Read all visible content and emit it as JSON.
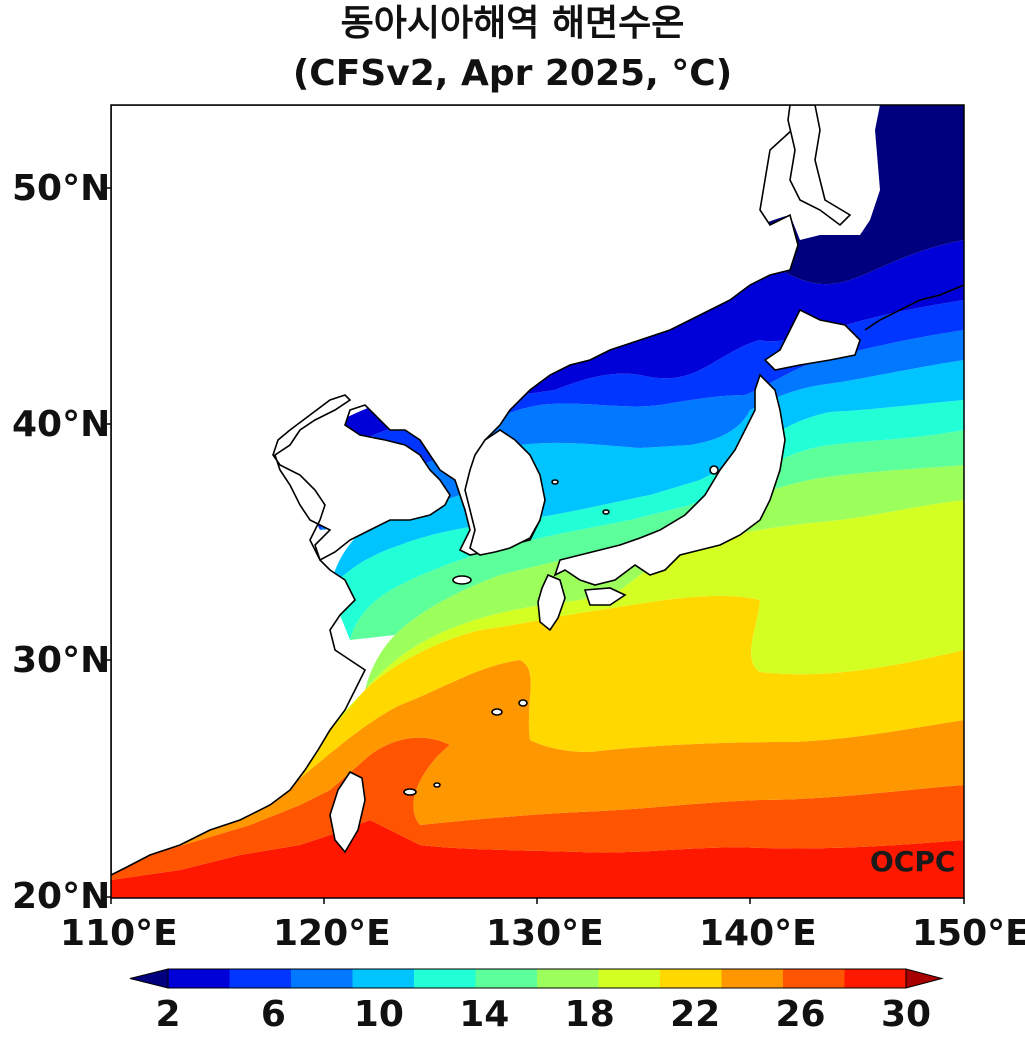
{
  "title": {
    "line1": "동아시아해역 해면수온",
    "line2": "(CFSv2, Apr 2025, °C)"
  },
  "map": {
    "extent": {
      "lon_min": 110,
      "lon_max": 150,
      "lat_min": 20,
      "lat_max": 53.5
    },
    "lat_ticks": [
      "50°N",
      "40°N",
      "30°N",
      "20°N"
    ],
    "lon_ticks": [
      "110°E",
      "120°E",
      "130°E",
      "140°E",
      "150°E"
    ],
    "watermark": "OCPC"
  },
  "colorbar": {
    "labels": [
      "2",
      "6",
      "10",
      "14",
      "18",
      "22",
      "26",
      "30"
    ],
    "colors": [
      "#00007f",
      "#0000d8",
      "#0036ff",
      "#0078ff",
      "#00c4ff",
      "#22ffd6",
      "#5cff9a",
      "#9cff5c",
      "#d4ff22",
      "#ffd800",
      "#ff9800",
      "#ff5400",
      "#ff1800",
      "#a80000"
    ],
    "extend": "both"
  }
}
